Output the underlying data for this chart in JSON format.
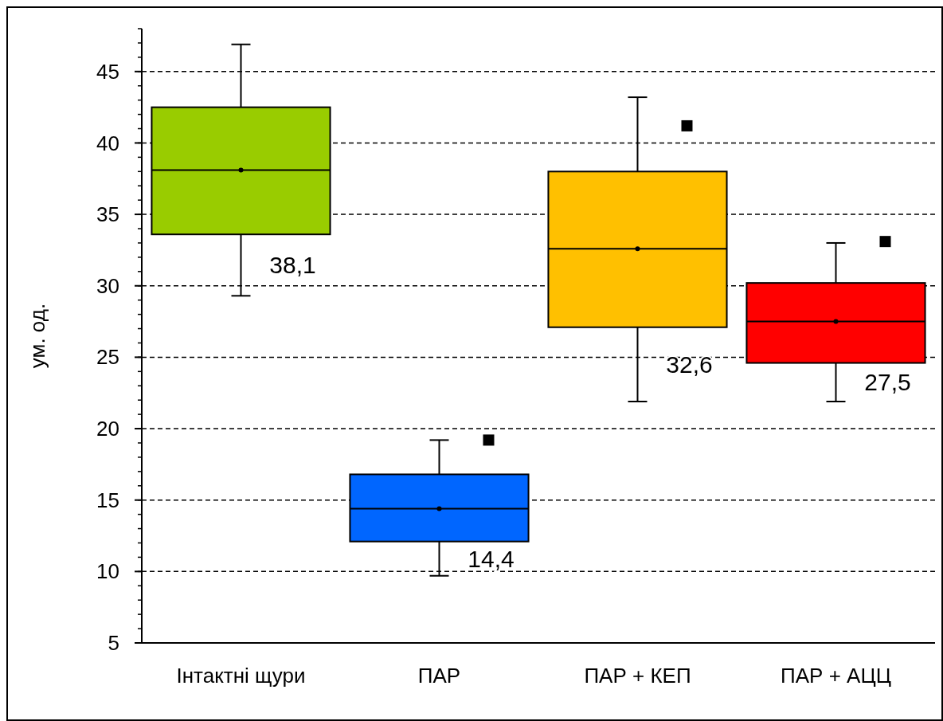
{
  "chart_data": {
    "type": "box",
    "ylabel": "ум. од.",
    "categories": [
      "Інтактні щури",
      "ПАР",
      "ПАР + КЕП",
      "ПАР + АЦЦ"
    ],
    "boxes": [
      {
        "low": 29.3,
        "q1": 33.6,
        "median": 38.1,
        "q3": 42.5,
        "high": 46.9,
        "mean": 38.1
      },
      {
        "low": 9.7,
        "q1": 12.1,
        "median": 14.4,
        "q3": 16.8,
        "high": 19.2,
        "mean": 14.4,
        "outliers": [
          19.2
        ]
      },
      {
        "low": 21.9,
        "q1": 27.1,
        "median": 32.6,
        "q3": 38.0,
        "high": 43.2,
        "mean": 32.6,
        "outliers": [
          41.2
        ]
      },
      {
        "low": 21.9,
        "q1": 24.6,
        "median": 27.5,
        "q3": 30.2,
        "high": 33.0,
        "mean": 27.5,
        "outliers": [
          33.1
        ]
      }
    ],
    "colors": [
      "#99cc00",
      "#0066ff",
      "#ffc000",
      "#ff0000"
    ],
    "annotations": [
      "38,1",
      "14,4",
      "32,6",
      "27,5"
    ],
    "ylim": [
      5,
      48
    ],
    "yticks": [
      5,
      10,
      15,
      20,
      25,
      30,
      35,
      40,
      45
    ],
    "grid": "y",
    "marker": "square"
  }
}
